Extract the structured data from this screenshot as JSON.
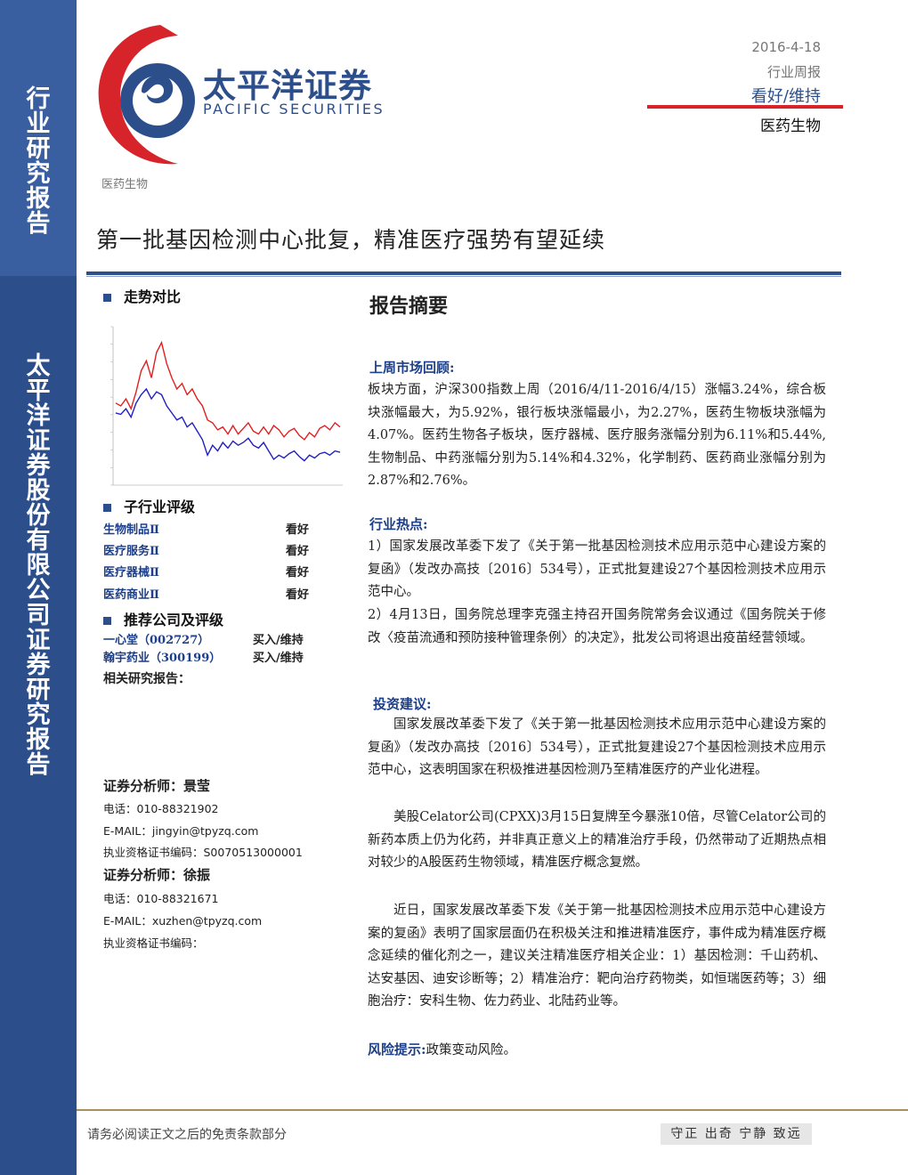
{
  "sidebar": {
    "top_text": "行业研究报告",
    "bottom_text": "太平洋证券股份有限公司证券研究报告"
  },
  "logo": {
    "cn": "太平洋证券",
    "en": "PACIFIC SECURITIES"
  },
  "header": {
    "date": "2016-4-18",
    "report_type": "行业周报",
    "rating": "看好/维持",
    "sector": "医药生物"
  },
  "sector_label": "医药生物",
  "title": "第一批基因检测中心批复，精准医疗强势有望延续",
  "trend": {
    "heading": "走势对比",
    "chart_data": {
      "type": "line",
      "series": [
        {
          "values": [
            0.52,
            0.5,
            0.55,
            0.48,
            0.6,
            0.75,
            0.82,
            0.7,
            0.88,
            0.95,
            0.8,
            0.7,
            0.62,
            0.66,
            0.58,
            0.62,
            0.55,
            0.5,
            0.4,
            0.38,
            0.33,
            0.35,
            0.3,
            0.36,
            0.3,
            0.34,
            0.38,
            0.32,
            0.3,
            0.35,
            0.3,
            0.36,
            0.33,
            0.28,
            0.32,
            0.34,
            0.29,
            0.26,
            0.31,
            0.28,
            0.34,
            0.36,
            0.33,
            0.38,
            0.35
          ]
        },
        {
          "values": [
            0.45,
            0.44,
            0.48,
            0.42,
            0.52,
            0.58,
            0.62,
            0.55,
            0.6,
            0.58,
            0.5,
            0.45,
            0.4,
            0.42,
            0.35,
            0.38,
            0.32,
            0.26,
            0.15,
            0.22,
            0.18,
            0.24,
            0.2,
            0.25,
            0.22,
            0.24,
            0.27,
            0.22,
            0.2,
            0.24,
            0.18,
            0.12,
            0.15,
            0.13,
            0.16,
            0.18,
            0.14,
            0.11,
            0.15,
            0.13,
            0.16,
            0.17,
            0.15,
            0.18,
            0.17
          ]
        }
      ]
    }
  },
  "industry_rating": {
    "heading": "子行业评级",
    "rows": [
      {
        "name": "生物制品Ⅱ",
        "rating": "看好"
      },
      {
        "name": "医疗服务Ⅱ",
        "rating": "看好"
      },
      {
        "name": "医疗器械Ⅱ",
        "rating": "看好"
      },
      {
        "name": "医药商业Ⅱ",
        "rating": "看好"
      }
    ]
  },
  "companies": {
    "heading": "推荐公司及评级",
    "rows": [
      {
        "name": "一心堂（002727）",
        "rating": "买入/维持"
      },
      {
        "name": "翰宇药业（300199）",
        "rating": "买入/维持"
      }
    ],
    "related": "相关研究报告："
  },
  "analysts": [
    {
      "name": "证券分析师：景莹",
      "phone": "电话：010-88321902",
      "email": "E-MAIL：jingyin@tpyzq.com",
      "cert": "执业资格证书编码：S0070513000001"
    },
    {
      "name": "证券分析师：徐振",
      "phone": "电话：010-88321671",
      "email": "E-MAIL：xuzhen@tpyzq.com",
      "cert": "执业资格证书编码："
    }
  ],
  "abstract": {
    "title": "报告摘要",
    "market_head": "上周市场回顾:",
    "market_text": "板块方面，沪深300指数上周（2016/4/11-2016/4/15）涨幅3.24%，综合板块涨幅最大，为5.92%，银行板块涨幅最小，为2.27%，医药生物板块涨幅为4.07%。医药生物各子板块，医疗器械、医疗服务涨幅分别为6.11%和5.44%,生物制品、中药涨幅分别为5.14%和4.32%，化学制药、医药商业涨幅分别为2.87%和2.76%。",
    "hot_head": "行业热点:",
    "hot_1": "1）国家发展改革委下发了《关于第一批基因检测技术应用示范中心建设方案的复函》（发改办高技〔2016〕534号），正式批复建设27个基因检测技术应用示范中心。",
    "hot_2": "2）4月13日，国务院总理李克强主持召开国务院常务会议通过《国务院关于修改〈疫苗流通和预防接种管理条例〉的决定》，批发公司将退出疫苗经营领域。",
    "invest_head": "投资建议:",
    "invest_1": "国家发展改革委下发了《关于第一批基因检测技术应用示范中心建设方案的复函》（发改办高技〔2016〕534号），正式批复建设27个基因检测技术应用示范中心，这表明国家在积极推进基因检测乃至精准医疗的产业化进程。",
    "invest_2": "美股Celator公司(CPXX)3月15日复牌至今暴涨10倍，尽管Celator公司的新药本质上仍为化药，并非真正意义上的精准治疗手段，仍然带动了近期热点相对较少的A股医药生物领域，精准医疗概念复燃。",
    "invest_3": "近日，国家发展改革委下发《关于第一批基因检测技术应用示范中心建设方案的复函》表明了国家层面仍在积极关注和推进精准医疗，事件成为精准医疗概念延续的催化剂之一，建议关注精准医疗相关企业：1）基因检测：千山药机、达安基因、迪安诊断等；2）精准治疗：靶向治疗药物类，如恒瑞医药等；3）细胞治疗：安科生物、佐力药业、北陆药业等。",
    "risk_head": "风险提示:",
    "risk_text": "政策变动风险。"
  },
  "footer": {
    "left": "请务必阅读正文之后的免责条款部分",
    "right": "守正 出奇 宁静 致远"
  },
  "colors": {
    "brand_blue": "#2c4f8c",
    "brand_red": "#d7242a"
  }
}
